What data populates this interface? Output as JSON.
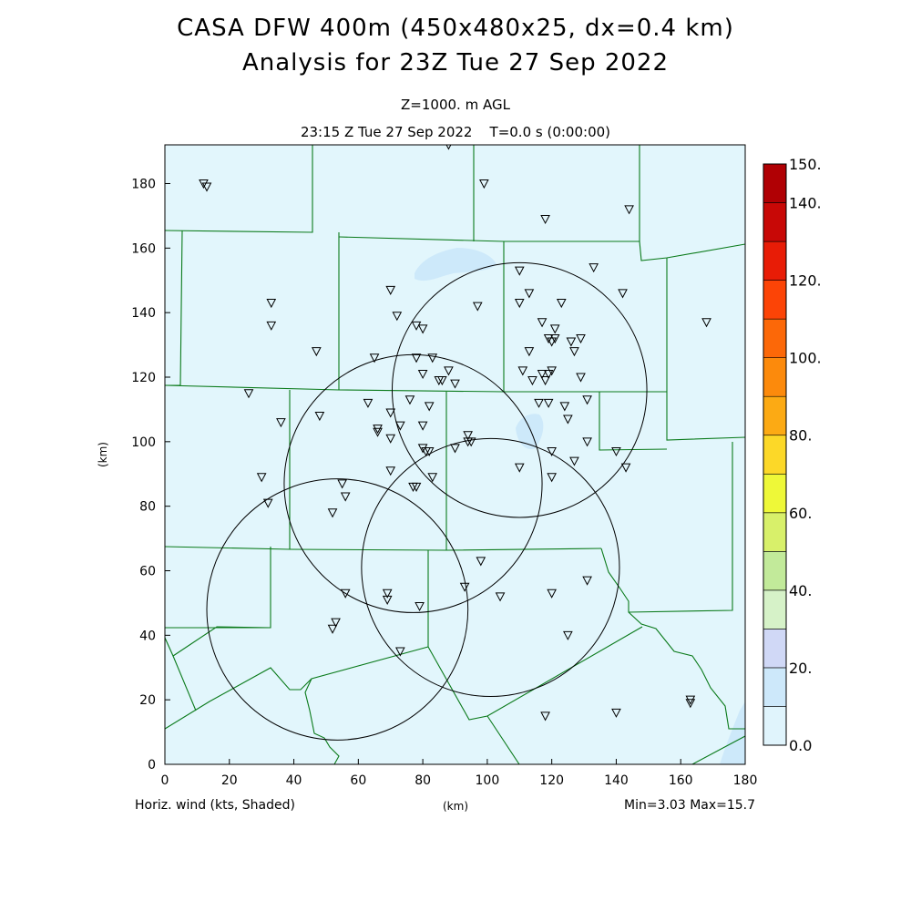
{
  "header": {
    "title_line1": "CASA DFW 400m (450x480x25, dx=0.4 km)",
    "title_line2": "Analysis for 23Z Tue 27 Sep 2022",
    "level": "Z=1000. m AGL",
    "time": "23:15 Z Tue 27 Sep 2022    T=0.0 s (0:00:00)"
  },
  "footer": {
    "field": "Horiz. wind (kts, Shaded)",
    "xunit": "(km)",
    "minmax": "Min=3.03 Max=15.7"
  },
  "axes": {
    "xlabel": "(km)",
    "ylabel": "(km)",
    "xlim": [
      0,
      180
    ],
    "ylim": [
      0,
      192
    ],
    "xticks": [
      0,
      20,
      40,
      60,
      80,
      100,
      120,
      140,
      160,
      180
    ],
    "yticks": [
      0,
      20,
      40,
      60,
      80,
      100,
      120,
      140,
      160,
      180
    ]
  },
  "colorbar": {
    "labels": [
      "150.",
      "140.",
      "120.",
      "100.",
      "80.",
      "60.",
      "40.",
      "20.",
      "0.0"
    ],
    "label_values": [
      150,
      140,
      120,
      100,
      80,
      60,
      40,
      20,
      0
    ],
    "levels": [
      0,
      10,
      20,
      30,
      40,
      50,
      60,
      70,
      80,
      90,
      100,
      110,
      120,
      130,
      140,
      150
    ],
    "colors": [
      "#e0f4fc",
      "#cde8fa",
      "#d0d8f6",
      "#d6f2c8",
      "#c2ea9a",
      "#d8f06a",
      "#eef838",
      "#fcd828",
      "#fcaa14",
      "#fc8a0c",
      "#fc6808",
      "#fc4406",
      "#e81c06",
      "#c80806",
      "#b00004"
    ]
  },
  "map_colors": {
    "background": "#e2f6fc",
    "shade": "#cde9fa",
    "county_line": "#0a7a1a"
  },
  "radar_rings": [
    {
      "cx": 53.5,
      "cy": 48,
      "r": 40.5
    },
    {
      "cx": 77,
      "cy": 87,
      "r": 40
    },
    {
      "cx": 101,
      "cy": 61,
      "r": 40
    },
    {
      "cx": 110,
      "cy": 116,
      "r": 39.5
    }
  ],
  "stations": [
    [
      12,
      180
    ],
    [
      13,
      179
    ],
    [
      88,
      192
    ],
    [
      99,
      180
    ],
    [
      118,
      169
    ],
    [
      144,
      172
    ],
    [
      168,
      137
    ],
    [
      33,
      143
    ],
    [
      33,
      136
    ],
    [
      47,
      128
    ],
    [
      70,
      147
    ],
    [
      72,
      139
    ],
    [
      78,
      136
    ],
    [
      80,
      135
    ],
    [
      65,
      126
    ],
    [
      78,
      126
    ],
    [
      83,
      126
    ],
    [
      80,
      121
    ],
    [
      86,
      119
    ],
    [
      88,
      122
    ],
    [
      90,
      118
    ],
    [
      85,
      119
    ],
    [
      76,
      113
    ],
    [
      82,
      111
    ],
    [
      73,
      105
    ],
    [
      70,
      109
    ],
    [
      66,
      104
    ],
    [
      66,
      103
    ],
    [
      63,
      112
    ],
    [
      70,
      101
    ],
    [
      80,
      105
    ],
    [
      80,
      98
    ],
    [
      82,
      97
    ],
    [
      94,
      102
    ],
    [
      94,
      100
    ],
    [
      95,
      100
    ],
    [
      90,
      98
    ],
    [
      81,
      97
    ],
    [
      110,
      153
    ],
    [
      113,
      146
    ],
    [
      110,
      143
    ],
    [
      97,
      142
    ],
    [
      117,
      137
    ],
    [
      121,
      135
    ],
    [
      119,
      132
    ],
    [
      120,
      131
    ],
    [
      121,
      132
    ],
    [
      126,
      131
    ],
    [
      127,
      128
    ],
    [
      129,
      132
    ],
    [
      123,
      143
    ],
    [
      133,
      154
    ],
    [
      142,
      146
    ],
    [
      113,
      128
    ],
    [
      111,
      122
    ],
    [
      114,
      119
    ],
    [
      117,
      121
    ],
    [
      119,
      121
    ],
    [
      120,
      122
    ],
    [
      118,
      119
    ],
    [
      129,
      120
    ],
    [
      131,
      113
    ],
    [
      116,
      112
    ],
    [
      119,
      112
    ],
    [
      124,
      111
    ],
    [
      125,
      107
    ],
    [
      120,
      97
    ],
    [
      131,
      100
    ],
    [
      127,
      94
    ],
    [
      140,
      97
    ],
    [
      143,
      92
    ],
    [
      120,
      89
    ],
    [
      110,
      92
    ],
    [
      26,
      115
    ],
    [
      36,
      106
    ],
    [
      48,
      108
    ],
    [
      30,
      89
    ],
    [
      32,
      81
    ],
    [
      55,
      87
    ],
    [
      56,
      83
    ],
    [
      52,
      78
    ],
    [
      70,
      91
    ],
    [
      78,
      86
    ],
    [
      77,
      86
    ],
    [
      83,
      89
    ],
    [
      98,
      63
    ],
    [
      93,
      55
    ],
    [
      104,
      52
    ],
    [
      120,
      53
    ],
    [
      131,
      57
    ],
    [
      125,
      40
    ],
    [
      118,
      15
    ],
    [
      140,
      16
    ],
    [
      163,
      20
    ],
    [
      163,
      19
    ],
    [
      56,
      53
    ],
    [
      69,
      53
    ],
    [
      69,
      51
    ],
    [
      79,
      49
    ],
    [
      53,
      44
    ],
    [
      52,
      42
    ],
    [
      73,
      35
    ]
  ]
}
